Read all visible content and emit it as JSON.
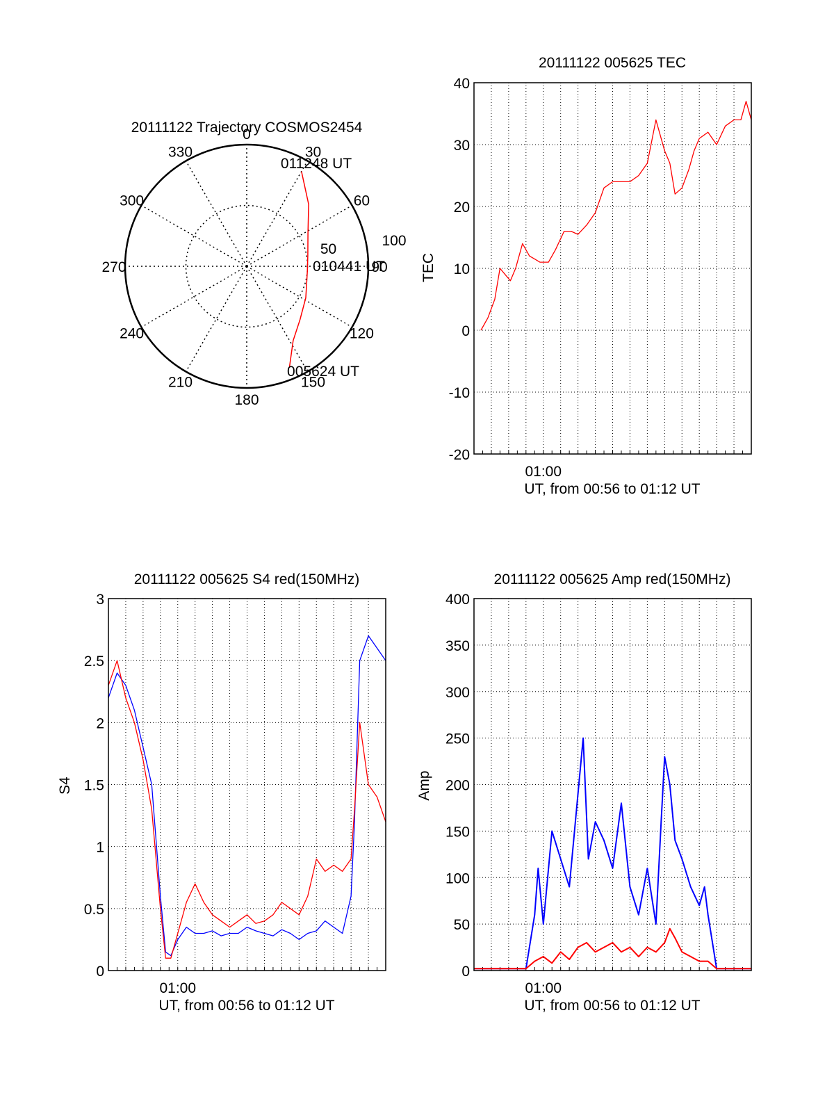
{
  "colors": {
    "red": "#ff0000",
    "blue": "#0000ff",
    "axis": "#000000",
    "grid": "#000000"
  },
  "chart_data": [
    {
      "type": "polar",
      "title": "20111122 Trajectory COSMOS2454",
      "angle_labels": [
        "0",
        "30",
        "60",
        "90",
        "120",
        "150",
        "180",
        "210",
        "240",
        "270",
        "300",
        "330"
      ],
      "radial_labels": [
        "50",
        "100"
      ],
      "rlim": [
        0,
        100
      ],
      "track": {
        "color": "red",
        "points": [
          {
            "az": 157,
            "r": 90
          },
          {
            "az": 148,
            "r": 72
          },
          {
            "az": 135,
            "r": 62
          },
          {
            "az": 118,
            "r": 55
          },
          {
            "az": 95,
            "r": 50
          },
          {
            "az": 80,
            "r": 51
          },
          {
            "az": 62,
            "r": 57
          },
          {
            "az": 45,
            "r": 72
          },
          {
            "az": 30,
            "r": 90
          }
        ]
      },
      "annotations": [
        "011248 UT",
        "010441 UT",
        "005624 UT"
      ]
    },
    {
      "type": "line",
      "title": "20111122 005625 TEC",
      "xlabel": "UT, from 00:56 to 01:12 UT",
      "ylabel": "TEC",
      "xlim": [
        "00:56",
        "01:12"
      ],
      "ylim": [
        -20,
        40
      ],
      "yticks": [
        "-20",
        "-10",
        "0",
        "10",
        "20",
        "30",
        "40"
      ],
      "xticks": [
        "01:00"
      ],
      "grid": true,
      "series": [
        {
          "color": "red",
          "x_minutes": [
            0.4,
            0.8,
            1.2,
            1.5,
            1.8,
            2.1,
            2.4,
            2.8,
            3.2,
            3.5,
            3.8,
            4.3,
            4.7,
            5.2,
            5.6,
            6.0,
            6.5,
            7.0,
            7.5,
            8.0,
            8.5,
            9.0,
            9.5,
            10.0,
            10.5,
            11.0,
            11.3,
            11.6,
            12.0,
            12.4,
            12.7,
            13.0,
            13.5,
            14.0,
            14.5,
            15.0,
            15.4,
            15.7,
            16.0
          ],
          "y": [
            0,
            2,
            5,
            10,
            9,
            8,
            10,
            14,
            12,
            11.5,
            11,
            11,
            13,
            16,
            16,
            15.5,
            17,
            19,
            23,
            24,
            24,
            24,
            25,
            27,
            34,
            29,
            27,
            22,
            23,
            26,
            29,
            31,
            32,
            30,
            33,
            34,
            34,
            37,
            34
          ]
        }
      ]
    },
    {
      "type": "line",
      "title": "20111122 005625 S4 red(150MHz)",
      "xlabel": "UT, from 00:56 to 01:12 UT",
      "ylabel": "S4",
      "xlim": [
        "00:56",
        "01:12"
      ],
      "ylim": [
        0,
        3
      ],
      "yticks": [
        "0",
        "0.5",
        "1",
        "1.5",
        "2",
        "2.5",
        "3"
      ],
      "xticks": [
        "01:00"
      ],
      "grid": true,
      "series": [
        {
          "color": "blue",
          "x_minutes": [
            0.0,
            0.5,
            1.0,
            1.5,
            2.0,
            2.5,
            3.0,
            3.3,
            3.6,
            4.0,
            4.5,
            5.0,
            5.5,
            6.0,
            6.5,
            7.0,
            7.5,
            8.0,
            8.5,
            9.0,
            9.5,
            10.0,
            10.5,
            11.0,
            11.5,
            12.0,
            12.5,
            13.0,
            13.5,
            14.0,
            14.2,
            14.5,
            15.0,
            15.5,
            16.0
          ],
          "y": [
            2.2,
            2.4,
            2.3,
            2.1,
            1.8,
            1.5,
            0.6,
            0.15,
            0.12,
            0.25,
            0.35,
            0.3,
            0.3,
            0.32,
            0.28,
            0.3,
            0.3,
            0.35,
            0.32,
            0.3,
            0.28,
            0.33,
            0.3,
            0.25,
            0.3,
            0.32,
            0.4,
            0.35,
            0.3,
            0.6,
            1.2,
            2.5,
            2.7,
            2.6,
            2.5
          ]
        },
        {
          "color": "red",
          "x_minutes": [
            0.0,
            0.5,
            1.0,
            1.5,
            2.0,
            2.5,
            3.0,
            3.3,
            3.6,
            4.0,
            4.5,
            5.0,
            5.5,
            6.0,
            6.5,
            7.0,
            7.5,
            8.0,
            8.5,
            9.0,
            9.5,
            10.0,
            10.5,
            11.0,
            11.5,
            12.0,
            12.5,
            13.0,
            13.5,
            14.0,
            14.2,
            14.5,
            15.0,
            15.5,
            16.0
          ],
          "y": [
            2.3,
            2.5,
            2.2,
            2.0,
            1.7,
            1.3,
            0.5,
            0.1,
            0.1,
            0.3,
            0.55,
            0.7,
            0.55,
            0.45,
            0.4,
            0.35,
            0.4,
            0.45,
            0.38,
            0.4,
            0.45,
            0.55,
            0.5,
            0.45,
            0.6,
            0.9,
            0.8,
            0.85,
            0.8,
            0.9,
            1.3,
            2.0,
            1.5,
            1.4,
            1.2
          ]
        }
      ]
    },
    {
      "type": "line",
      "title": "20111122 005625 Amp red(150MHz)",
      "xlabel": "UT, from 00:56 to 01:12 UT",
      "ylabel": "Amp",
      "xlim": [
        "00:56",
        "01:12"
      ],
      "ylim": [
        0,
        400
      ],
      "yticks": [
        "0",
        "50",
        "100",
        "150",
        "200",
        "250",
        "300",
        "350",
        "400"
      ],
      "xticks": [
        "01:00"
      ],
      "grid": true,
      "series": [
        {
          "color": "blue",
          "x_minutes": [
            0.0,
            1.0,
            2.0,
            3.0,
            3.5,
            3.7,
            4.0,
            4.5,
            5.0,
            5.5,
            6.0,
            6.3,
            6.6,
            7.0,
            7.5,
            8.0,
            8.5,
            9.0,
            9.5,
            10.0,
            10.5,
            10.8,
            11.0,
            11.3,
            11.6,
            12.0,
            12.5,
            13.0,
            13.3,
            13.5,
            14.0,
            15.0,
            16.0
          ],
          "y": [
            2,
            2,
            2,
            2,
            60,
            110,
            50,
            150,
            120,
            90,
            190,
            250,
            120,
            160,
            140,
            110,
            180,
            90,
            60,
            110,
            50,
            160,
            230,
            200,
            140,
            120,
            90,
            70,
            90,
            60,
            2,
            2,
            2
          ]
        },
        {
          "color": "red",
          "x_minutes": [
            0.0,
            1.0,
            2.0,
            3.0,
            3.5,
            4.0,
            4.5,
            5.0,
            5.5,
            6.0,
            6.5,
            7.0,
            7.5,
            8.0,
            8.5,
            9.0,
            9.5,
            10.0,
            10.5,
            11.0,
            11.3,
            11.6,
            12.0,
            12.5,
            13.0,
            13.5,
            14.0,
            15.0,
            16.0
          ],
          "y": [
            2,
            2,
            2,
            2,
            10,
            15,
            8,
            20,
            12,
            25,
            30,
            20,
            25,
            30,
            20,
            25,
            15,
            25,
            20,
            30,
            45,
            35,
            20,
            15,
            10,
            10,
            2,
            2,
            2
          ]
        }
      ]
    }
  ]
}
